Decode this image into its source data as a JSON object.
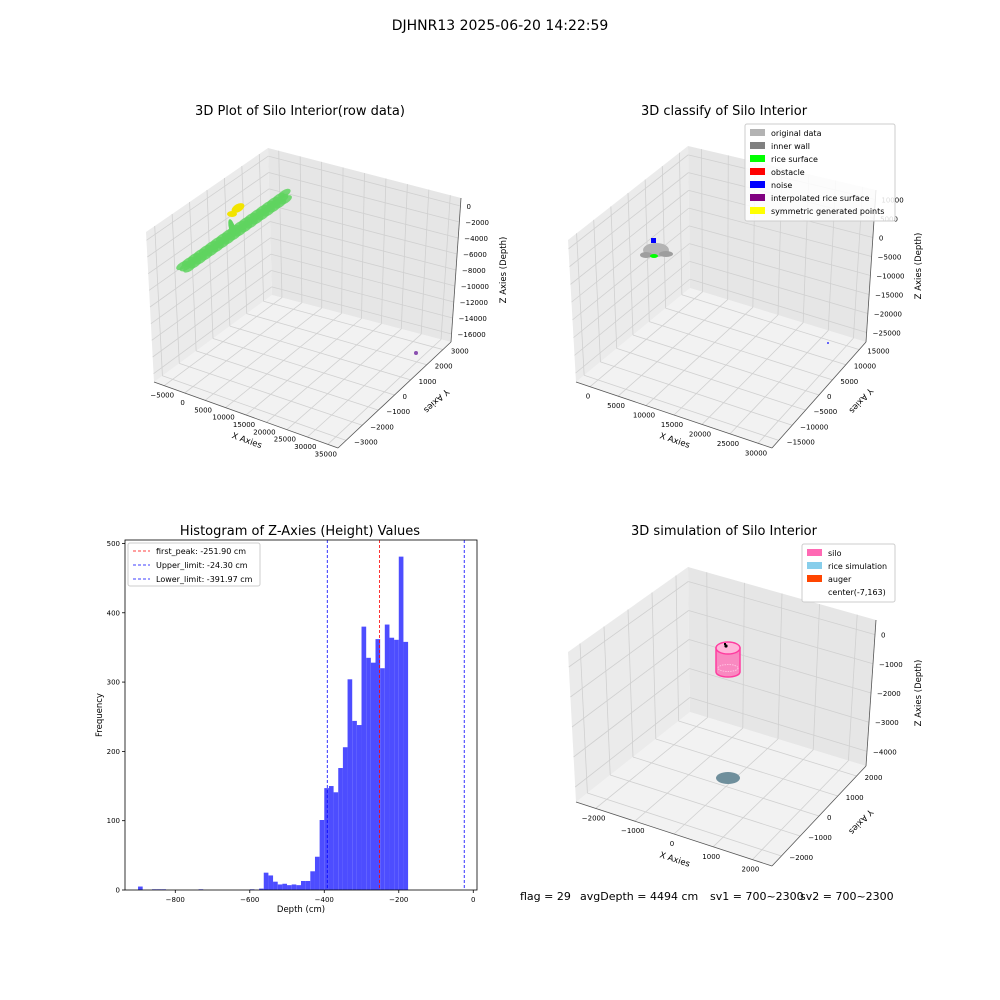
{
  "suptitle": "DJHNR13 2025-06-20 14:22:59",
  "chart_data": [
    {
      "type": "scatter",
      "subtype": "3d",
      "title": "3D Plot of Silo Interior(row data)",
      "xlabel": "X Axies",
      "ylabel": "Y Axies",
      "zlabel": "Z Axies (Depth)",
      "xticks": [
        "−5000",
        "0",
        "5000",
        "10000",
        "15000",
        "20000",
        "25000",
        "30000",
        "35000"
      ],
      "yticks": [
        "−3000",
        "−2000",
        "−1000",
        "0",
        "1000",
        "2000",
        "3000"
      ],
      "zticks": [
        "0",
        "−2000",
        "−4000",
        "−6000",
        "−8000",
        "−10000",
        "−12000",
        "−14000",
        "−16000"
      ],
      "colors": {
        "surface": "#5fd45f",
        "top": "#f2e400",
        "outlier": "#8a4fb0"
      }
    },
    {
      "type": "scatter",
      "subtype": "3d",
      "title": "3D classify of Silo Interior",
      "xlabel": "X Axies",
      "ylabel": "Y Axies",
      "zlabel": "Z Axies (Depth)",
      "xticks": [
        "0",
        "5000",
        "10000",
        "15000",
        "20000",
        "25000",
        "30000"
      ],
      "yticks": [
        "−15000",
        "−10000",
        "−5000",
        "0",
        "5000",
        "10000",
        "15000"
      ],
      "zticks": [
        "10000",
        "5000",
        "0",
        "−5000",
        "−10000",
        "−15000",
        "−20000",
        "−25000"
      ],
      "legend": [
        {
          "name": "original data",
          "color": "#b3b3b3"
        },
        {
          "name": "inner wall",
          "color": "#808080"
        },
        {
          "name": "rice surface",
          "color": "#00ff00"
        },
        {
          "name": "obstacle",
          "color": "#ff0000"
        },
        {
          "name": "noise",
          "color": "#0000ff"
        },
        {
          "name": "interpolated rice surface",
          "color": "#800080"
        },
        {
          "name": "symmetric generated points",
          "color": "#ffff00"
        }
      ]
    },
    {
      "type": "bar",
      "subtype": "histogram",
      "title": "Histogram of Z-Axies (Height) Values",
      "xlabel": "Depth (cm)",
      "ylabel": "Frequency",
      "xlim": [
        -935,
        10
      ],
      "ylim": [
        0,
        505
      ],
      "xticks": [
        "−800",
        "−600",
        "−400",
        "−200",
        "0"
      ],
      "yticks": [
        "0",
        "100",
        "200",
        "300",
        "400",
        "500"
      ],
      "bar_color": "#4d4dff",
      "bin_start": -900,
      "bin_width": 12.5,
      "values": [
        5,
        0,
        0,
        1,
        1,
        1,
        0,
        0,
        0,
        0,
        0,
        0,
        0,
        1,
        0,
        0,
        0,
        0,
        0,
        0,
        0,
        0,
        0,
        0,
        1,
        0,
        2,
        25,
        21,
        12,
        8,
        9,
        7,
        8,
        7,
        13,
        13,
        27,
        48,
        101,
        147,
        150,
        141,
        176,
        206,
        304,
        244,
        238,
        380,
        335,
        328,
        362,
        320,
        383,
        364,
        361,
        481,
        358,
        0
      ],
      "vlines": [
        {
          "label": "first_peak: -251.90 cm",
          "x": -251.9,
          "color": "#ff0000"
        },
        {
          "label": "Upper_limit: -24.30 cm",
          "x": -24.3,
          "color": "#0000ff"
        },
        {
          "label": "Lower_limit: -391.97 cm",
          "x": -391.97,
          "color": "#0000ff"
        }
      ]
    },
    {
      "type": "scatter",
      "subtype": "3d",
      "title": "3D simulation of Silo Interior",
      "xlabel": "X Axies",
      "ylabel": "Y Axies",
      "zlabel": "Z Axies (Depth)",
      "xticks": [
        "−2000",
        "−1000",
        "0",
        "1000",
        "2000"
      ],
      "yticks": [
        "−2000",
        "−1000",
        "0",
        "1000",
        "2000"
      ],
      "zticks": [
        "0",
        "−1000",
        "−2000",
        "−3000",
        "−4000"
      ],
      "legend": [
        {
          "name": "silo",
          "color": "#ff69b4"
        },
        {
          "name": "rice simulation",
          "color": "#87ceeb"
        },
        {
          "name": "auger",
          "color": "#ff4500"
        },
        {
          "name": "center(-7,163)",
          "color": "#ffffff"
        }
      ]
    }
  ],
  "footer": {
    "flag": "flag = 29",
    "avg": "avgDepth = 4494 cm",
    "sv1": "sv1 = 700~2300",
    "sv2": "sv2 = 700~2300"
  }
}
